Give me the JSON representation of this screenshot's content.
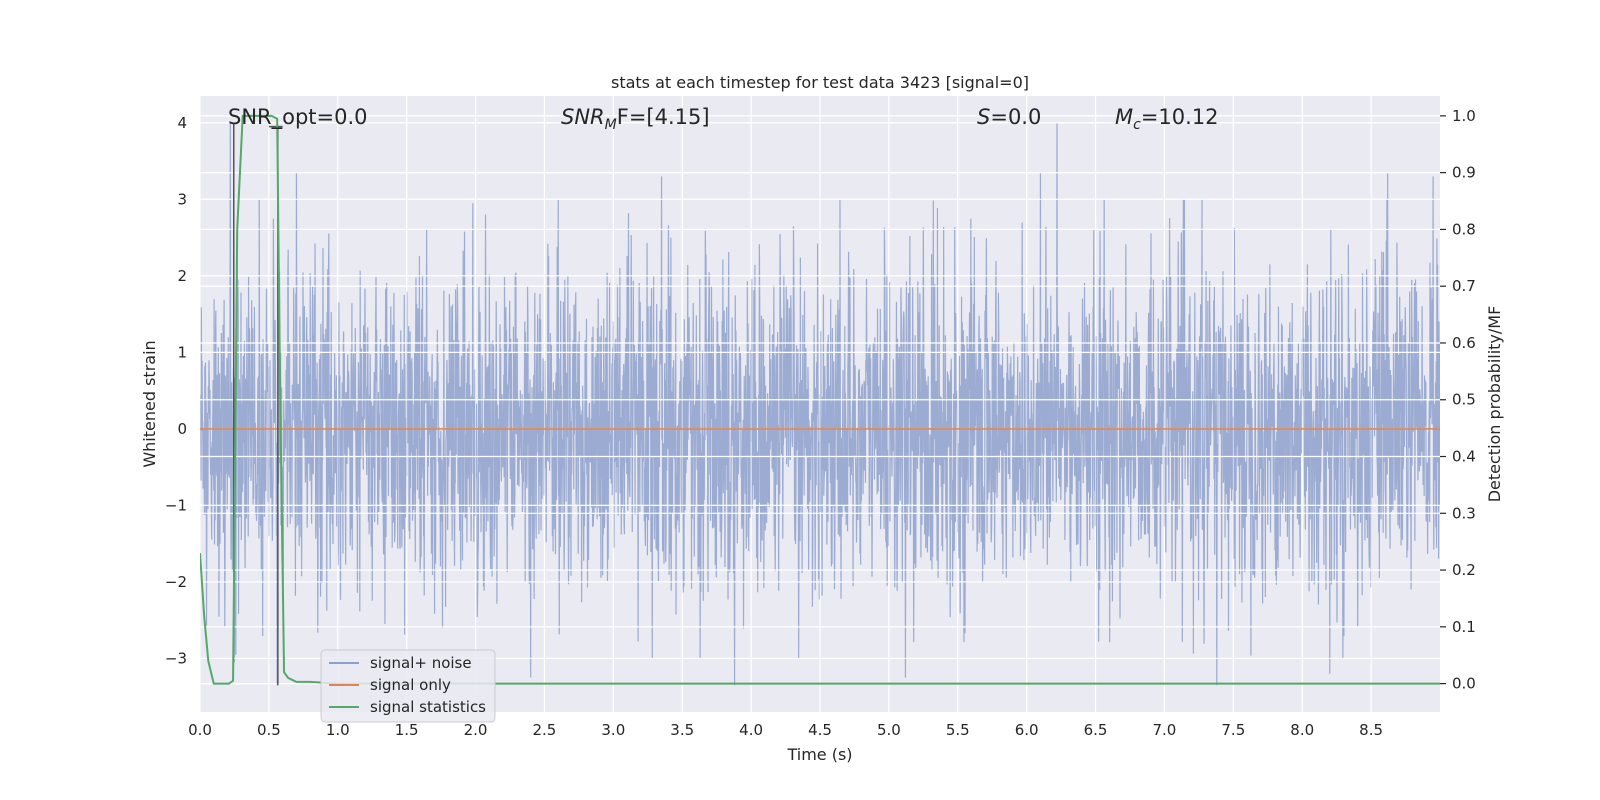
{
  "chart_data": {
    "type": "line",
    "title": "stats at each timestep for test data 3423 [signal=0]",
    "xlabel": "Time (s)",
    "ylabel_left": "Whitened strain",
    "ylabel_right": "Detection probability/MF",
    "xlim": [
      0.0,
      9.0
    ],
    "ylim_left": [
      -3.7,
      4.35
    ],
    "ylim_right": [
      -0.05,
      1.035
    ],
    "x_ticks": [
      "0.0",
      "0.5",
      "1.0",
      "1.5",
      "2.0",
      "2.5",
      "3.0",
      "3.5",
      "4.0",
      "4.5",
      "5.0",
      "5.5",
      "6.0",
      "6.5",
      "7.0",
      "7.5",
      "8.0",
      "8.5"
    ],
    "y_ticks_left": [
      "−3",
      "−2",
      "−1",
      "0",
      "1",
      "2",
      "3",
      "4"
    ],
    "y_ticks_right": [
      "0.0",
      "0.1",
      "0.2",
      "0.3",
      "0.4",
      "0.5",
      "0.6",
      "0.7",
      "0.8",
      "0.9",
      "1.0"
    ],
    "grid": true,
    "legend_position": "lower-left",
    "annotations": {
      "snr_opt": "SNR_opt=0.0",
      "snr_mf_base": "SNR",
      "snr_mf_sub": "M",
      "snr_mf_tail": "F=[4.15]",
      "s_var": "S",
      "s_value": "=0.0",
      "mc_base": "M",
      "mc_sub": "c",
      "mc_value": "=10.12"
    },
    "series": [
      {
        "name": "signal+ noise",
        "axis": "left",
        "color": "#8da0cb",
        "sample_rate_hz": 400,
        "noise_std": 1.05,
        "extremes": [
          {
            "x": 0.22,
            "y": 4.0
          },
          {
            "x": 0.56,
            "y": -3.35
          },
          {
            "x": 0.25,
            "y": -3.05
          },
          {
            "x": 0.7,
            "y": 3.35
          },
          {
            "x": 3.35,
            "y": 3.3
          },
          {
            "x": 3.88,
            "y": -3.35
          },
          {
            "x": 5.12,
            "y": -3.25
          },
          {
            "x": 6.22,
            "y": 4.0
          },
          {
            "x": 6.1,
            "y": 3.35
          },
          {
            "x": 7.38,
            "y": -3.35
          },
          {
            "x": 8.62,
            "y": 3.35
          },
          {
            "x": 8.95,
            "y": 3.3
          },
          {
            "x": 8.2,
            "y": -3.2
          },
          {
            "x": 2.4,
            "y": -3.25
          }
        ]
      },
      {
        "name": "signal only",
        "axis": "left",
        "color": "#dd8452",
        "x": [
          0.0,
          9.0
        ],
        "y": [
          0.0,
          0.0
        ]
      },
      {
        "name": "signal statistics",
        "axis": "right",
        "color": "#55a868",
        "x": [
          0.0,
          0.03,
          0.06,
          0.1,
          0.16,
          0.21,
          0.24,
          0.27,
          0.31,
          0.36,
          0.44,
          0.52,
          0.56,
          0.58,
          0.61,
          0.64,
          0.7,
          0.8,
          1.0,
          1.5,
          2.0,
          3.0,
          4.0,
          5.0,
          6.0,
          7.0,
          8.0,
          9.0
        ],
        "y": [
          0.23,
          0.12,
          0.04,
          0.0,
          0.0,
          0.0,
          0.005,
          0.8,
          1.0,
          1.0,
          1.0,
          1.0,
          0.995,
          0.55,
          0.02,
          0.01,
          0.003,
          0.003,
          0.0,
          0.0,
          0.0,
          0.0,
          0.0,
          0.0,
          0.0,
          0.0,
          0.0,
          0.0
        ]
      }
    ],
    "markers": [
      {
        "x": 0.245,
        "y_from": 4.0,
        "y_to": -2.35,
        "color": "#555555"
      },
      {
        "x": 0.565,
        "y_from": 3.97,
        "y_to": -3.35,
        "color": "#555555"
      }
    ]
  }
}
